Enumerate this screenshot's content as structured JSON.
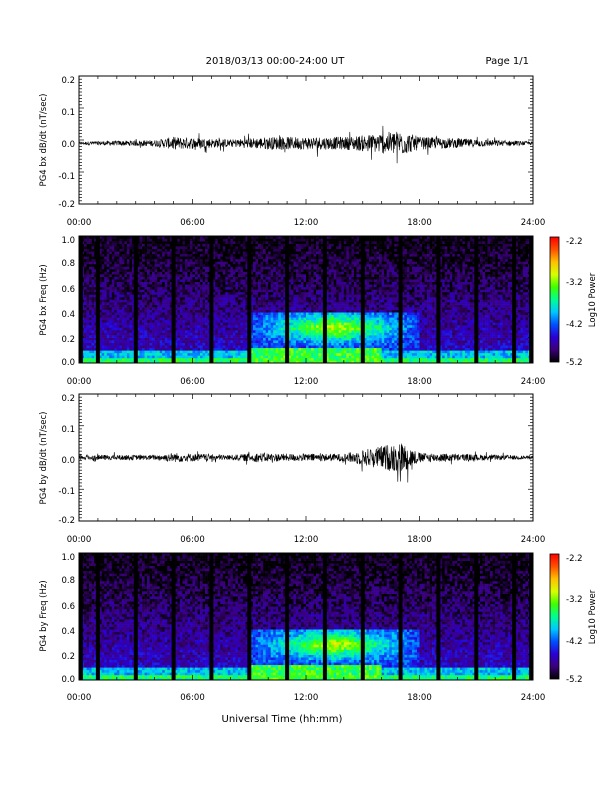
{
  "header": {
    "title": "2018/03/13  00:00-24:00 UT",
    "page": "Page 1/1"
  },
  "footer": {
    "xlabel": "Universal Time (hh:mm)"
  },
  "colorbar": {
    "label": "Log10 Power",
    "ticks": [
      "-2.2",
      "-3.2",
      "-4.2",
      "-5.2"
    ],
    "range": [
      -5.2,
      -2.2
    ],
    "colors": [
      "#000000",
      "#3b007a",
      "#2a00d4",
      "#0050ff",
      "#00c8ff",
      "#00ff90",
      "#40ff00",
      "#d8ff00",
      "#ffc000",
      "#ff5000",
      "#ff0000"
    ]
  },
  "chart_data": [
    {
      "type": "line",
      "ylabel": "PG4 bx dB/dt (nT/sec)",
      "xlim": [
        "00:00",
        "24:00"
      ],
      "ylim": [
        -0.2,
        0.2
      ],
      "x_ticks": [
        "00:00",
        "06:00",
        "12:00",
        "18:00",
        "24:00"
      ],
      "y_ticks": [
        "0.2",
        "0.1",
        "0.0",
        "-0.1",
        "-0.2"
      ],
      "baseline": -0.01,
      "envelope": [
        {
          "t": 0,
          "amp": 0.005
        },
        {
          "t": 4,
          "amp": 0.01
        },
        {
          "t": 5,
          "amp": 0.02
        },
        {
          "t": 6,
          "amp": 0.018
        },
        {
          "t": 8,
          "amp": 0.012
        },
        {
          "t": 10,
          "amp": 0.02
        },
        {
          "t": 12,
          "amp": 0.02
        },
        {
          "t": 14,
          "amp": 0.02
        },
        {
          "t": 15,
          "amp": 0.025
        },
        {
          "t": 17,
          "amp": 0.04
        },
        {
          "t": 18,
          "amp": 0.02
        },
        {
          "t": 22,
          "amp": 0.01
        },
        {
          "t": 24,
          "amp": 0.005
        }
      ]
    },
    {
      "type": "heatmap",
      "ylabel": "PG4 bx Freq (Hz)",
      "xlim": [
        "00:00",
        "24:00"
      ],
      "ylim": [
        0.0,
        1.0
      ],
      "x_ticks": [
        "00:00",
        "06:00",
        "12:00",
        "18:00",
        "24:00"
      ],
      "y_ticks": [
        "1.0",
        "0.8",
        "0.6",
        "0.4",
        "0.2",
        "0.0"
      ],
      "gaps_hours": [
        0.1,
        1.0,
        3.0,
        5.0,
        7.0,
        9.0,
        11.0,
        13.0,
        15.0,
        17.0,
        19.0,
        21.0,
        23.0,
        23.9
      ],
      "enhancement": {
        "t_range_hours": [
          9,
          18
        ],
        "freq_range_hz": [
          0.1,
          0.4
        ],
        "peak_log_power": -3.0
      }
    },
    {
      "type": "line",
      "ylabel": "PG4 by dB/dt (nT/sec)",
      "xlim": [
        "00:00",
        "24:00"
      ],
      "ylim": [
        -0.2,
        0.2
      ],
      "x_ticks": [
        "00:00",
        "06:00",
        "12:00",
        "18:00",
        "24:00"
      ],
      "y_ticks": [
        "0.2",
        "0.1",
        "0.0",
        "-0.1",
        "-0.2"
      ],
      "baseline": 0.0,
      "envelope": [
        {
          "t": 0,
          "amp": 0.008
        },
        {
          "t": 4,
          "amp": 0.008
        },
        {
          "t": 5,
          "amp": 0.015
        },
        {
          "t": 8,
          "amp": 0.008
        },
        {
          "t": 9.5,
          "amp": 0.015
        },
        {
          "t": 11,
          "amp": 0.012
        },
        {
          "t": 14,
          "amp": 0.012
        },
        {
          "t": 15,
          "amp": 0.025
        },
        {
          "t": 17,
          "amp": 0.05
        },
        {
          "t": 18,
          "amp": 0.015
        },
        {
          "t": 22,
          "amp": 0.008
        },
        {
          "t": 24,
          "amp": 0.005
        }
      ]
    },
    {
      "type": "heatmap",
      "ylabel": "PG4 by Freq (Hz)",
      "xlim": [
        "00:00",
        "24:00"
      ],
      "ylim": [
        0.0,
        1.0
      ],
      "x_ticks": [
        "00:00",
        "06:00",
        "12:00",
        "18:00",
        "24:00"
      ],
      "y_ticks": [
        "1.0",
        "0.8",
        "0.6",
        "0.4",
        "0.2",
        "0.0"
      ],
      "gaps_hours": [
        0.1,
        1.0,
        3.0,
        5.0,
        7.0,
        9.0,
        11.0,
        13.0,
        15.0,
        17.0,
        19.0,
        21.0,
        23.0,
        23.9
      ],
      "enhancement": {
        "t_range_hours": [
          9,
          18
        ],
        "freq_range_hz": [
          0.1,
          0.4
        ],
        "peak_log_power": -3.0
      }
    }
  ]
}
